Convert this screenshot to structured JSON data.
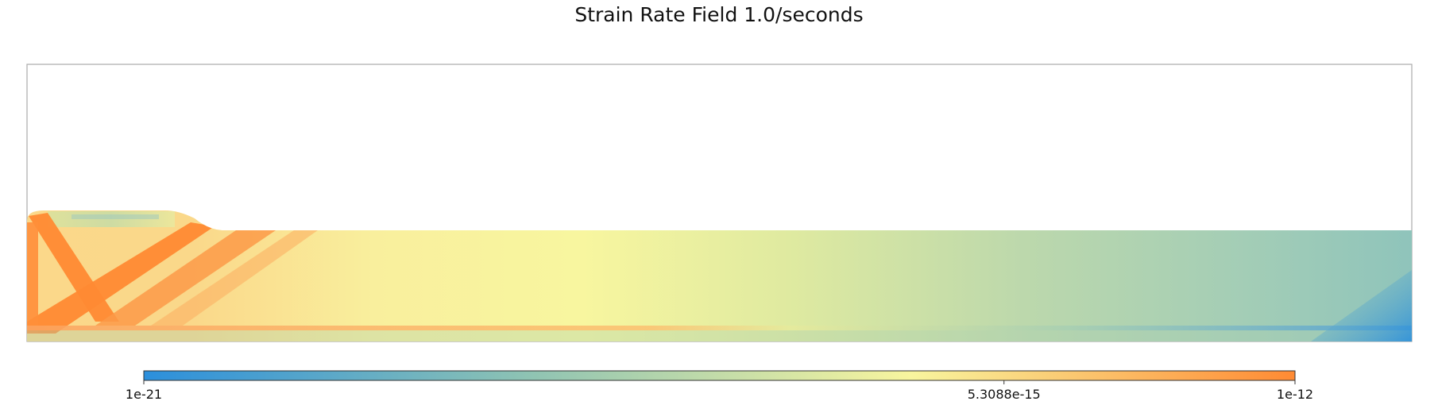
{
  "chart_data": {
    "type": "heatmap",
    "title": "Strain Rate Field 1.0/seconds",
    "xlabel": "",
    "ylabel": "",
    "grid": false,
    "colorbar": {
      "orientation": "horizontal",
      "placement": "bottom",
      "scale": "log",
      "range": [
        1e-21,
        1e-12
      ],
      "ticks": [
        {
          "value": 1e-21,
          "label": "1e-21"
        },
        {
          "value": 5.3088e-15,
          "label": "5.3088e-15"
        },
        {
          "value": 1e-12,
          "label": "1e-12"
        }
      ],
      "colors": [
        "#2b8fdc",
        "#8ec3b3",
        "#f8f59e",
        "#ff8a33"
      ]
    }
  }
}
